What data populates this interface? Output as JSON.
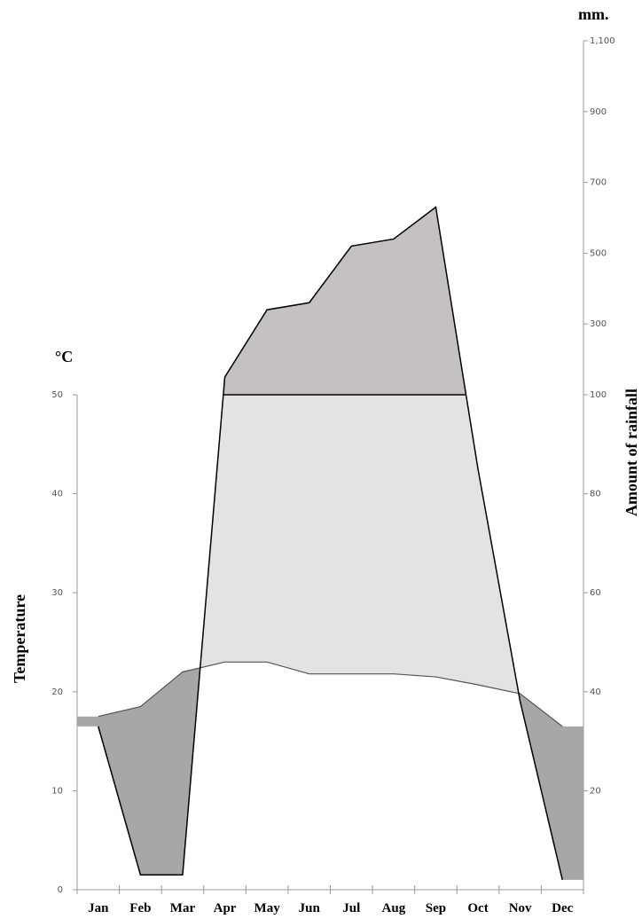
{
  "chart_data": {
    "type": "climate",
    "y_label_unit": "°C",
    "y_label": "Temperature",
    "y2_label_unit": "mm.",
    "y2_label": "Amount of rainfall",
    "categories": [
      "Jan",
      "Feb",
      "Mar",
      "Apr",
      "May",
      "Jun",
      "Jul",
      "Aug",
      "Sep",
      "Oct",
      "Nov",
      "Dec"
    ],
    "series": [
      {
        "name": "Temperature",
        "color": "#555555",
        "values": [
          17.5,
          18.5,
          22,
          23,
          23,
          21.8,
          21.8,
          21.8,
          21.5,
          20.7,
          19.8,
          16.5
        ]
      },
      {
        "name": "Amount of rainfall",
        "color": "#000000",
        "axis": "y2",
        "values": [
          33,
          3,
          3,
          150,
          340,
          360,
          520,
          540,
          630,
          85,
          38,
          2
        ]
      }
    ],
    "ylim": [
      0,
      50
    ],
    "yticks": [
      0,
      10,
      20,
      30,
      40,
      50
    ],
    "y2lim": [
      0,
      1100
    ],
    "y2_break": 100,
    "y2ticks": [
      20,
      40,
      60,
      80,
      100,
      300,
      500,
      700,
      900,
      {
        "value": 1100,
        "label": "1,100"
      }
    ]
  }
}
